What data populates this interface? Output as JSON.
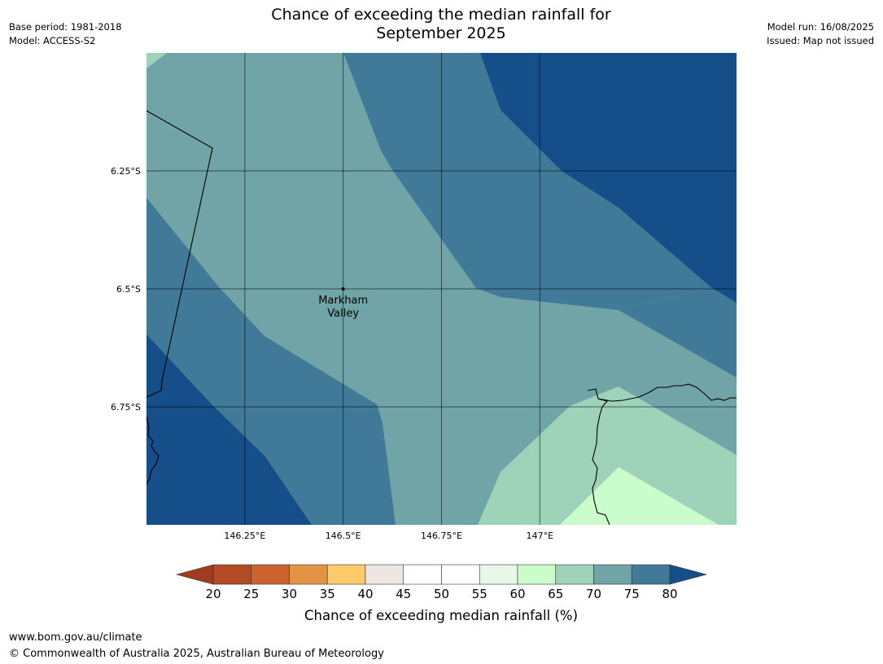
{
  "title_line1": "Chance of exceeding the median rainfall for",
  "title_line2": "September 2025",
  "base_period": "Base period: 1981-2018",
  "model": "Model: ACCESS-S2",
  "model_run": "Model run: 16/08/2025",
  "issued": "Issued: Map not issued",
  "map": {
    "lon_range": [
      146.0,
      147.5
    ],
    "lat_range": [
      -6.0,
      -7.0
    ],
    "lat_ticks": [
      {
        "value": -6.25,
        "label": "6.25°S"
      },
      {
        "value": -6.5,
        "label": "6.5°S"
      },
      {
        "value": -6.75,
        "label": "6.75°S"
      }
    ],
    "lon_ticks": [
      {
        "value": 146.25,
        "label": "146.25°E"
      },
      {
        "value": 146.5,
        "label": "146.5°E"
      },
      {
        "value": 146.75,
        "label": "146.75°E"
      },
      {
        "value": 147.0,
        "label": "147°E"
      }
    ],
    "grid": true,
    "place": {
      "name_line1": "Markham",
      "name_line2": "Valley",
      "lon": 146.5,
      "lat": -6.5
    },
    "colors": {
      "c60_65": "#cbfccb",
      "c65_70": "#9ed2b9",
      "c70_75": "#70a4a7",
      "c75_80": "#407a98",
      "c80_plus": "#154e88"
    }
  },
  "colorbar": {
    "ticks": [
      "20",
      "25",
      "30",
      "35",
      "40",
      "45",
      "50",
      "55",
      "60",
      "65",
      "70",
      "75",
      "80"
    ],
    "colors": [
      "#9f3b1f",
      "#b34a24",
      "#cd622f",
      "#e29444",
      "#fec969",
      "#ece7e2",
      "#ffffff",
      "#ffffff",
      "#e9f7e9",
      "#cbfccb",
      "#9ed2b9",
      "#70a4a7",
      "#407a98",
      "#154e88"
    ],
    "label": "Chance of exceeding median rainfall (%)"
  },
  "footer": {
    "url": "www.bom.gov.au/climate",
    "copyright": "© Commonwealth of Australia 2025, Australian Bureau of Meteorology"
  }
}
